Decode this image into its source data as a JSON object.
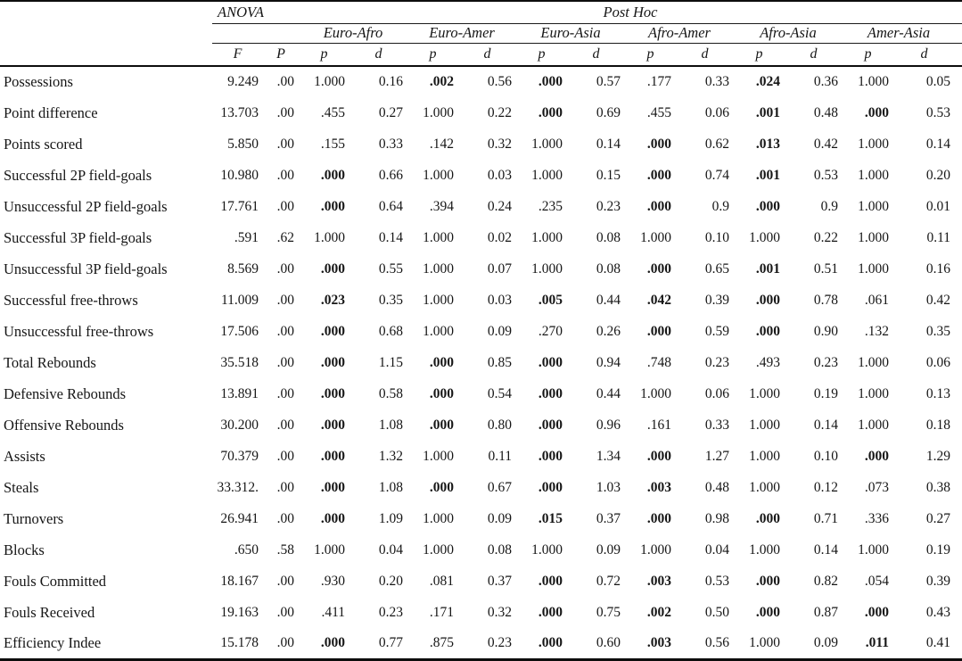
{
  "header": {
    "anova": "ANOVA",
    "post_hoc": "Post Hoc",
    "groups": [
      "Euro-Afro",
      "Euro-Amer",
      "Euro-Asia",
      "Afro-Amer",
      "Afro-Asia",
      "Amer-Asia"
    ],
    "anova_stats": [
      "F",
      "P"
    ],
    "pair_stats": [
      "p",
      "d"
    ]
  },
  "rows": [
    {
      "label": "Possessions",
      "f": "9.249",
      "p": ".00",
      "pairs": [
        {
          "p": "1.000",
          "bold": false,
          "d": "0.16"
        },
        {
          "p": ".002",
          "bold": true,
          "d": "0.56"
        },
        {
          "p": ".000",
          "bold": true,
          "d": "0.57"
        },
        {
          "p": ".177",
          "bold": false,
          "d": "0.33"
        },
        {
          "p": ".024",
          "bold": true,
          "d": "0.36"
        },
        {
          "p": "1.000",
          "bold": false,
          "d": "0.05"
        }
      ]
    },
    {
      "label": "Point difference",
      "f": "13.703",
      "p": ".00",
      "pairs": [
        {
          "p": ".455",
          "bold": false,
          "d": "0.27"
        },
        {
          "p": "1.000",
          "bold": false,
          "d": "0.22"
        },
        {
          "p": ".000",
          "bold": true,
          "d": "0.69"
        },
        {
          "p": ".455",
          "bold": false,
          "d": "0.06"
        },
        {
          "p": ".001",
          "bold": true,
          "d": "0.48"
        },
        {
          "p": ".000",
          "bold": true,
          "d": "0.53"
        }
      ]
    },
    {
      "label": "Points scored",
      "f": "5.850",
      "p": ".00",
      "pairs": [
        {
          "p": ".155",
          "bold": false,
          "d": "0.33"
        },
        {
          "p": ".142",
          "bold": false,
          "d": "0.32"
        },
        {
          "p": "1.000",
          "bold": false,
          "d": "0.14"
        },
        {
          "p": ".000",
          "bold": true,
          "d": "0.62"
        },
        {
          "p": ".013",
          "bold": true,
          "d": "0.42"
        },
        {
          "p": "1.000",
          "bold": false,
          "d": "0.14"
        }
      ]
    },
    {
      "label": "Successful 2P field-goals",
      "f": "10.980",
      "p": ".00",
      "pairs": [
        {
          "p": ".000",
          "bold": true,
          "d": "0.66"
        },
        {
          "p": "1.000",
          "bold": false,
          "d": "0.03"
        },
        {
          "p": "1.000",
          "bold": false,
          "d": "0.15"
        },
        {
          "p": ".000",
          "bold": true,
          "d": "0.74"
        },
        {
          "p": ".001",
          "bold": true,
          "d": "0.53"
        },
        {
          "p": "1.000",
          "bold": false,
          "d": "0.20"
        }
      ]
    },
    {
      "label": "Unsuccessful 2P field-goals",
      "f": "17.761",
      "p": ".00",
      "pairs": [
        {
          "p": ".000",
          "bold": true,
          "d": "0.64"
        },
        {
          "p": ".394",
          "bold": false,
          "d": "0.24"
        },
        {
          "p": ".235",
          "bold": false,
          "d": "0.23"
        },
        {
          "p": ".000",
          "bold": true,
          "d": "0.9"
        },
        {
          "p": ".000",
          "bold": true,
          "d": "0.9"
        },
        {
          "p": "1.000",
          "bold": false,
          "d": "0.01"
        }
      ]
    },
    {
      "label": "Successful 3P field-goals",
      "f": ".591",
      "p": ".62",
      "pairs": [
        {
          "p": "1.000",
          "bold": false,
          "d": "0.14"
        },
        {
          "p": "1.000",
          "bold": false,
          "d": "0.02"
        },
        {
          "p": "1.000",
          "bold": false,
          "d": "0.08"
        },
        {
          "p": "1.000",
          "bold": false,
          "d": "0.10"
        },
        {
          "p": "1.000",
          "bold": false,
          "d": "0.22"
        },
        {
          "p": "1.000",
          "bold": false,
          "d": "0.11"
        }
      ]
    },
    {
      "label": "Unsuccessful 3P field-goals",
      "f": "8.569",
      "p": ".00",
      "pairs": [
        {
          "p": ".000",
          "bold": true,
          "d": "0.55"
        },
        {
          "p": "1.000",
          "bold": false,
          "d": "0.07"
        },
        {
          "p": "1.000",
          "bold": false,
          "d": "0.08"
        },
        {
          "p": ".000",
          "bold": true,
          "d": "0.65"
        },
        {
          "p": ".001",
          "bold": true,
          "d": "0.51"
        },
        {
          "p": "1.000",
          "bold": false,
          "d": "0.16"
        }
      ]
    },
    {
      "label": "Successful free-throws",
      "f": "11.009",
      "p": ".00",
      "pairs": [
        {
          "p": ".023",
          "bold": true,
          "d": "0.35"
        },
        {
          "p": "1.000",
          "bold": false,
          "d": "0.03"
        },
        {
          "p": ".005",
          "bold": true,
          "d": "0.44"
        },
        {
          "p": ".042",
          "bold": true,
          "d": "0.39"
        },
        {
          "p": ".000",
          "bold": true,
          "d": "0.78"
        },
        {
          "p": ".061",
          "bold": false,
          "d": "0.42"
        }
      ]
    },
    {
      "label": "Unsuccessful free-throws",
      "f": "17.506",
      "p": ".00",
      "pairs": [
        {
          "p": ".000",
          "bold": true,
          "d": "0.68"
        },
        {
          "p": "1.000",
          "bold": false,
          "d": "0.09"
        },
        {
          "p": ".270",
          "bold": false,
          "d": "0.26"
        },
        {
          "p": ".000",
          "bold": true,
          "d": "0.59"
        },
        {
          "p": ".000",
          "bold": true,
          "d": "0.90"
        },
        {
          "p": ".132",
          "bold": false,
          "d": "0.35"
        }
      ]
    },
    {
      "label": "Total Rebounds",
      "f": "35.518",
      "p": ".00",
      "pairs": [
        {
          "p": ".000",
          "bold": true,
          "d": "1.15"
        },
        {
          "p": ".000",
          "bold": true,
          "d": "0.85"
        },
        {
          "p": ".000",
          "bold": true,
          "d": "0.94"
        },
        {
          "p": ".748",
          "bold": false,
          "d": "0.23"
        },
        {
          "p": ".493",
          "bold": false,
          "d": "0.23"
        },
        {
          "p": "1.000",
          "bold": false,
          "d": "0.06"
        }
      ]
    },
    {
      "label": "Defensive Rebounds",
      "f": "13.891",
      "p": ".00",
      "pairs": [
        {
          "p": ".000",
          "bold": true,
          "d": "0.58"
        },
        {
          "p": ".000",
          "bold": true,
          "d": "0.54"
        },
        {
          "p": ".000",
          "bold": true,
          "d": "0.44"
        },
        {
          "p": "1.000",
          "bold": false,
          "d": "0.06"
        },
        {
          "p": "1.000",
          "bold": false,
          "d": "0.19"
        },
        {
          "p": "1.000",
          "bold": false,
          "d": "0.13"
        }
      ]
    },
    {
      "label": "Offensive Rebounds",
      "f": "30.200",
      "p": ".00",
      "pairs": [
        {
          "p": ".000",
          "bold": true,
          "d": "1.08"
        },
        {
          "p": ".000",
          "bold": true,
          "d": "0.80"
        },
        {
          "p": ".000",
          "bold": true,
          "d": "0.96"
        },
        {
          "p": ".161",
          "bold": false,
          "d": "0.33"
        },
        {
          "p": "1.000",
          "bold": false,
          "d": "0.14"
        },
        {
          "p": "1.000",
          "bold": false,
          "d": "0.18"
        }
      ]
    },
    {
      "label": "Assists",
      "f": "70.379",
      "p": ".00",
      "pairs": [
        {
          "p": ".000",
          "bold": true,
          "d": "1.32"
        },
        {
          "p": "1.000",
          "bold": false,
          "d": "0.11"
        },
        {
          "p": ".000",
          "bold": true,
          "d": "1.34"
        },
        {
          "p": ".000",
          "bold": true,
          "d": "1.27"
        },
        {
          "p": "1.000",
          "bold": false,
          "d": "0.10"
        },
        {
          "p": ".000",
          "bold": true,
          "d": "1.29"
        }
      ]
    },
    {
      "label": "Steals",
      "f": "33.312.",
      "p": ".00",
      "pairs": [
        {
          "p": ".000",
          "bold": true,
          "d": "1.08"
        },
        {
          "p": ".000",
          "bold": true,
          "d": "0.67"
        },
        {
          "p": ".000",
          "bold": true,
          "d": "1.03"
        },
        {
          "p": ".003",
          "bold": true,
          "d": "0.48"
        },
        {
          "p": "1.000",
          "bold": false,
          "d": "0.12"
        },
        {
          "p": ".073",
          "bold": false,
          "d": "0.38"
        }
      ]
    },
    {
      "label": "Turnovers",
      "f": "26.941",
      "p": ".00",
      "pairs": [
        {
          "p": ".000",
          "bold": true,
          "d": "1.09"
        },
        {
          "p": "1.000",
          "bold": false,
          "d": "0.09"
        },
        {
          "p": ".015",
          "bold": true,
          "d": "0.37"
        },
        {
          "p": ".000",
          "bold": true,
          "d": "0.98"
        },
        {
          "p": ".000",
          "bold": true,
          "d": "0.71"
        },
        {
          "p": ".336",
          "bold": false,
          "d": "0.27"
        }
      ]
    },
    {
      "label": "Blocks",
      "f": ".650",
      "p": ".58",
      "pairs": [
        {
          "p": "1.000",
          "bold": false,
          "d": "0.04"
        },
        {
          "p": "1.000",
          "bold": false,
          "d": "0.08"
        },
        {
          "p": "1.000",
          "bold": false,
          "d": "0.09"
        },
        {
          "p": "1.000",
          "bold": false,
          "d": "0.04"
        },
        {
          "p": "1.000",
          "bold": false,
          "d": "0.14"
        },
        {
          "p": "1.000",
          "bold": false,
          "d": "0.19"
        }
      ]
    },
    {
      "label": "Fouls Committed",
      "f": "18.167",
      "p": ".00",
      "pairs": [
        {
          "p": ".930",
          "bold": false,
          "d": "0.20"
        },
        {
          "p": ".081",
          "bold": false,
          "d": "0.37"
        },
        {
          "p": ".000",
          "bold": true,
          "d": "0.72"
        },
        {
          "p": ".003",
          "bold": true,
          "d": "0.53"
        },
        {
          "p": ".000",
          "bold": true,
          "d": "0.82"
        },
        {
          "p": ".054",
          "bold": false,
          "d": "0.39"
        }
      ]
    },
    {
      "label": "Fouls Received",
      "f": "19.163",
      "p": ".00",
      "pairs": [
        {
          "p": ".411",
          "bold": false,
          "d": "0.23"
        },
        {
          "p": ".171",
          "bold": false,
          "d": "0.32"
        },
        {
          "p": ".000",
          "bold": true,
          "d": "0.75"
        },
        {
          "p": ".002",
          "bold": true,
          "d": "0.50"
        },
        {
          "p": ".000",
          "bold": true,
          "d": "0.87"
        },
        {
          "p": ".000",
          "bold": true,
          "d": "0.43"
        }
      ]
    },
    {
      "label": "Efficiency Indee",
      "f": "15.178",
      "p": ".00",
      "pairs": [
        {
          "p": ".000",
          "bold": true,
          "d": "0.77"
        },
        {
          "p": ".875",
          "bold": false,
          "d": "0.23"
        },
        {
          "p": ".000",
          "bold": true,
          "d": "0.60"
        },
        {
          "p": ".003",
          "bold": true,
          "d": "0.56"
        },
        {
          "p": "1.000",
          "bold": false,
          "d": "0.09"
        },
        {
          "p": ".011",
          "bold": true,
          "d": "0.41"
        }
      ]
    }
  ]
}
